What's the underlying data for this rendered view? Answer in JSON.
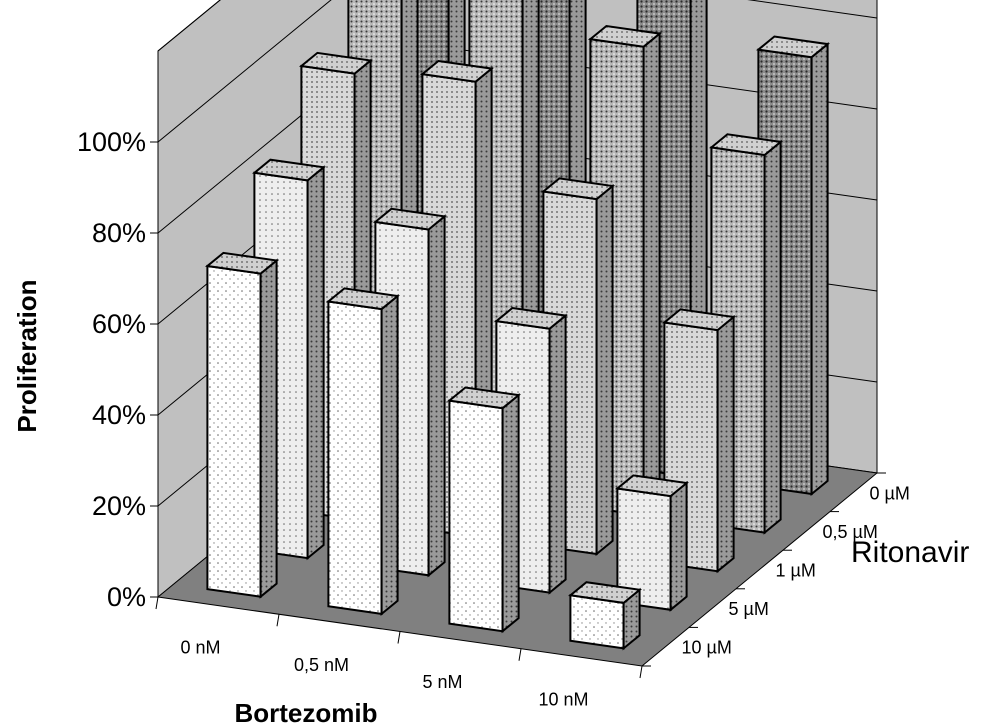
{
  "chart_data": {
    "type": "bar",
    "subtype": "3d-column",
    "title": "",
    "xlabel": "Bortezomib",
    "ylabel": "Proliferation",
    "zlabel": "Ritonavir",
    "categories": [
      "0 nM",
      "0,5 nM",
      "5 nM",
      "10 nM"
    ],
    "series_labels": [
      "0 µM",
      "0,5 µM",
      "1 µM",
      "5 µM",
      "10 µM"
    ],
    "y_ticks": [
      "0%",
      "20%",
      "40%",
      "60%",
      "80%",
      "100%"
    ],
    "ylim": [
      0,
      1.2
    ],
    "grid": true,
    "series": [
      {
        "name": "0 µM",
        "values": [
          1.11,
          1.12,
          1.05,
          0.96
        ]
      },
      {
        "name": "0,5 µM",
        "values": [
          1.15,
          1.17,
          1.03,
          0.83
        ]
      },
      {
        "name": "1 µM",
        "values": [
          0.98,
          1.0,
          0.78,
          0.53
        ]
      },
      {
        "name": "5 µM",
        "values": [
          0.83,
          0.76,
          0.58,
          0.25
        ]
      },
      {
        "name": "10 µM",
        "values": [
          0.71,
          0.67,
          0.49,
          0.1
        ]
      }
    ],
    "colors": {
      "walls": "#c0c0c0",
      "floor": "#808080",
      "bar_front": "#ffffff",
      "bar_side": "#a0a0a0",
      "bar_top": "#d8d8d8",
      "series_patterns": [
        "#7a7a7a",
        "#9a9a9a",
        "#b4b4b4",
        "#d4d4d4",
        "#f2f2f2"
      ]
    }
  }
}
